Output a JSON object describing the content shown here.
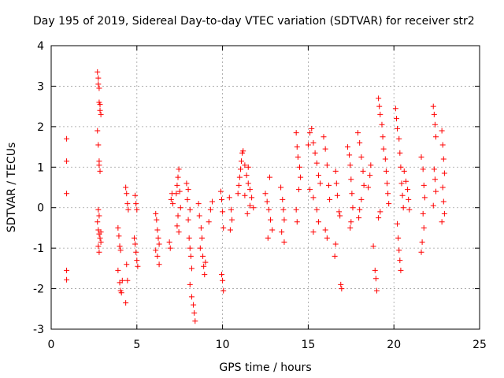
{
  "chart_data": {
    "type": "scatter",
    "title": "Day 195 of 2019, Sidereal Day-to-day VTEC variation (SDTVAR) for receiver str2",
    "xlabel": "GPS time / hours",
    "ylabel": "SDTVAR / TECUs",
    "xlim": [
      0,
      25
    ],
    "ylim": [
      -3,
      4
    ],
    "xticks": [
      "0",
      "5",
      "10",
      "15",
      "20",
      "25"
    ],
    "yticks": [
      "-3",
      "-2",
      "-1",
      "0",
      "1",
      "2",
      "3",
      "4"
    ],
    "grid": true,
    "marker": "+",
    "marker_color": "#ff0000",
    "series": [
      {
        "name": "SDTVAR",
        "points": [
          [
            0.9,
            1.7
          ],
          [
            0.9,
            1.15
          ],
          [
            0.9,
            0.35
          ],
          [
            0.9,
            -1.55
          ],
          [
            0.9,
            -1.78
          ],
          [
            2.7,
            3.35
          ],
          [
            2.75,
            3.2
          ],
          [
            2.75,
            3.05
          ],
          [
            2.8,
            2.95
          ],
          [
            2.8,
            2.6
          ],
          [
            2.85,
            2.55
          ],
          [
            2.85,
            2.4
          ],
          [
            2.9,
            2.3
          ],
          [
            2.7,
            1.9
          ],
          [
            2.75,
            1.55
          ],
          [
            2.8,
            1.15
          ],
          [
            2.8,
            1.05
          ],
          [
            2.85,
            0.9
          ],
          [
            2.75,
            -0.05
          ],
          [
            2.8,
            -0.2
          ],
          [
            2.7,
            -0.35
          ],
          [
            2.75,
            -0.55
          ],
          [
            2.8,
            -0.65
          ],
          [
            2.85,
            -0.75
          ],
          [
            2.9,
            -0.85
          ],
          [
            2.75,
            -0.95
          ],
          [
            2.8,
            -1.1
          ],
          [
            2.9,
            -0.6
          ],
          [
            3.9,
            -0.5
          ],
          [
            3.95,
            -0.7
          ],
          [
            4.0,
            -0.95
          ],
          [
            4.05,
            -1.05
          ],
          [
            3.9,
            -1.55
          ],
          [
            4.0,
            -1.85
          ],
          [
            4.05,
            -2.05
          ],
          [
            4.1,
            -2.1
          ],
          [
            4.15,
            -1.8
          ],
          [
            4.35,
            0.5
          ],
          [
            4.4,
            0.35
          ],
          [
            4.45,
            0.1
          ],
          [
            4.5,
            -0.05
          ],
          [
            4.4,
            -1.4
          ],
          [
            4.45,
            -1.8
          ],
          [
            4.35,
            -2.35
          ],
          [
            4.9,
            0.3
          ],
          [
            4.95,
            0.1
          ],
          [
            5.0,
            -0.05
          ],
          [
            4.85,
            -0.75
          ],
          [
            4.9,
            -0.9
          ],
          [
            4.95,
            -1.1
          ],
          [
            5.0,
            -1.3
          ],
          [
            5.05,
            -1.45
          ],
          [
            6.1,
            -0.15
          ],
          [
            6.15,
            -0.3
          ],
          [
            6.2,
            -0.55
          ],
          [
            6.25,
            -0.75
          ],
          [
            6.3,
            -0.9
          ],
          [
            6.1,
            -1.05
          ],
          [
            6.2,
            -1.2
          ],
          [
            6.3,
            -1.4
          ],
          [
            7.0,
            0.2
          ],
          [
            7.05,
            0.35
          ],
          [
            7.1,
            0.1
          ],
          [
            6.9,
            -0.85
          ],
          [
            6.95,
            -1.0
          ],
          [
            7.3,
            0.35
          ],
          [
            7.35,
            0.55
          ],
          [
            7.4,
            0.75
          ],
          [
            7.45,
            0.95
          ],
          [
            7.5,
            0.4
          ],
          [
            7.55,
            0.0
          ],
          [
            7.4,
            -0.2
          ],
          [
            7.35,
            -0.45
          ],
          [
            7.45,
            -0.6
          ],
          [
            7.9,
            0.6
          ],
          [
            8.0,
            0.45
          ],
          [
            7.95,
            0.2
          ],
          [
            8.1,
            -0.05
          ],
          [
            8.0,
            -0.3
          ],
          [
            8.05,
            -0.75
          ],
          [
            8.1,
            -1.0
          ],
          [
            8.15,
            -1.2
          ],
          [
            8.2,
            -1.5
          ],
          [
            8.1,
            -1.9
          ],
          [
            8.2,
            -2.2
          ],
          [
            8.3,
            -2.4
          ],
          [
            8.35,
            -2.6
          ],
          [
            8.4,
            -2.8
          ],
          [
            8.6,
            0.1
          ],
          [
            8.65,
            -0.2
          ],
          [
            8.75,
            -0.5
          ],
          [
            8.8,
            -0.75
          ],
          [
            8.7,
            -1.0
          ],
          [
            8.85,
            -1.2
          ],
          [
            8.9,
            -1.45
          ],
          [
            8.95,
            -1.65
          ],
          [
            9.0,
            -1.35
          ],
          [
            9.4,
            0.15
          ],
          [
            9.3,
            -0.05
          ],
          [
            9.2,
            -0.35
          ],
          [
            9.9,
            0.4
          ],
          [
            9.95,
            0.2
          ],
          [
            10.0,
            -0.1
          ],
          [
            10.05,
            -0.5
          ],
          [
            9.95,
            -1.65
          ],
          [
            10.0,
            -1.8
          ],
          [
            10.05,
            -2.05
          ],
          [
            10.4,
            0.25
          ],
          [
            10.5,
            -0.05
          ],
          [
            10.55,
            -0.3
          ],
          [
            10.45,
            -0.55
          ],
          [
            10.9,
            0.35
          ],
          [
            10.95,
            0.55
          ],
          [
            11.0,
            0.75
          ],
          [
            11.05,
            0.95
          ],
          [
            11.1,
            1.15
          ],
          [
            11.15,
            1.35
          ],
          [
            11.2,
            1.4
          ],
          [
            11.3,
            1.05
          ],
          [
            11.4,
            0.8
          ],
          [
            11.5,
            0.6
          ],
          [
            11.6,
            0.45
          ],
          [
            11.7,
            0.25
          ],
          [
            11.8,
            0.0
          ],
          [
            11.6,
            0.05
          ],
          [
            11.45,
            -0.15
          ],
          [
            11.3,
            0.3
          ],
          [
            11.5,
            1.0
          ],
          [
            12.5,
            0.35
          ],
          [
            12.6,
            0.15
          ],
          [
            12.7,
            -0.05
          ],
          [
            12.8,
            -0.3
          ],
          [
            12.9,
            -0.55
          ],
          [
            12.65,
            -0.75
          ],
          [
            12.75,
            0.75
          ],
          [
            13.4,
            0.5
          ],
          [
            13.5,
            0.2
          ],
          [
            13.55,
            -0.05
          ],
          [
            13.6,
            -0.3
          ],
          [
            13.45,
            -0.6
          ],
          [
            13.6,
            -0.85
          ],
          [
            14.3,
            1.85
          ],
          [
            14.35,
            1.5
          ],
          [
            14.4,
            1.25
          ],
          [
            14.5,
            1.0
          ],
          [
            14.55,
            0.75
          ],
          [
            14.45,
            0.45
          ],
          [
            14.3,
            -0.05
          ],
          [
            14.35,
            -0.35
          ],
          [
            15.0,
            1.55
          ],
          [
            15.1,
            1.85
          ],
          [
            15.2,
            1.95
          ],
          [
            15.3,
            1.6
          ],
          [
            15.4,
            1.35
          ],
          [
            15.5,
            1.1
          ],
          [
            15.6,
            0.8
          ],
          [
            15.7,
            0.6
          ],
          [
            15.1,
            0.45
          ],
          [
            15.3,
            0.25
          ],
          [
            15.5,
            -0.05
          ],
          [
            15.6,
            -0.35
          ],
          [
            15.3,
            -0.6
          ],
          [
            15.9,
            1.75
          ],
          [
            16.0,
            1.45
          ],
          [
            16.1,
            1.05
          ],
          [
            16.2,
            0.55
          ],
          [
            16.25,
            0.2
          ],
          [
            16.0,
            -0.55
          ],
          [
            16.1,
            -0.75
          ],
          [
            16.6,
            0.9
          ],
          [
            16.65,
            0.6
          ],
          [
            16.7,
            0.3
          ],
          [
            16.8,
            -0.1
          ],
          [
            16.85,
            -0.2
          ],
          [
            16.9,
            -1.9
          ],
          [
            16.95,
            -2.0
          ],
          [
            16.6,
            -0.9
          ],
          [
            16.55,
            -1.2
          ],
          [
            17.3,
            1.5
          ],
          [
            17.4,
            1.3
          ],
          [
            17.45,
            1.05
          ],
          [
            17.5,
            0.7
          ],
          [
            17.55,
            0.35
          ],
          [
            17.6,
            0.0
          ],
          [
            17.5,
            -0.35
          ],
          [
            17.45,
            -0.5
          ],
          [
            17.9,
            1.85
          ],
          [
            18.0,
            1.6
          ],
          [
            18.1,
            1.25
          ],
          [
            18.2,
            0.9
          ],
          [
            18.25,
            0.55
          ],
          [
            18.1,
            0.2
          ],
          [
            18.0,
            -0.05
          ],
          [
            17.95,
            -0.25
          ],
          [
            18.6,
            0.8
          ],
          [
            18.5,
            0.5
          ],
          [
            18.65,
            1.05
          ],
          [
            18.8,
            -0.95
          ],
          [
            18.9,
            -1.55
          ],
          [
            18.95,
            -1.75
          ],
          [
            19.0,
            -2.05
          ],
          [
            19.1,
            2.7
          ],
          [
            19.15,
            2.5
          ],
          [
            19.2,
            2.3
          ],
          [
            19.3,
            2.05
          ],
          [
            19.35,
            1.75
          ],
          [
            19.4,
            1.45
          ],
          [
            19.5,
            1.2
          ],
          [
            19.55,
            0.9
          ],
          [
            19.6,
            0.6
          ],
          [
            19.65,
            0.35
          ],
          [
            19.7,
            0.1
          ],
          [
            19.2,
            -0.1
          ],
          [
            19.1,
            -0.25
          ],
          [
            20.1,
            2.45
          ],
          [
            20.15,
            2.2
          ],
          [
            20.2,
            1.95
          ],
          [
            20.3,
            1.7
          ],
          [
            20.35,
            1.35
          ],
          [
            20.4,
            1.0
          ],
          [
            20.45,
            0.6
          ],
          [
            20.5,
            0.3
          ],
          [
            20.55,
            0.0
          ],
          [
            20.2,
            -0.4
          ],
          [
            20.25,
            -0.75
          ],
          [
            20.3,
            -1.05
          ],
          [
            20.35,
            -1.3
          ],
          [
            20.4,
            -1.55
          ],
          [
            20.6,
            0.9
          ],
          [
            20.7,
            0.65
          ],
          [
            20.8,
            0.45
          ],
          [
            20.85,
            0.2
          ],
          [
            20.9,
            -0.05
          ],
          [
            21.6,
            1.25
          ],
          [
            21.7,
            0.95
          ],
          [
            21.75,
            0.55
          ],
          [
            21.8,
            0.25
          ],
          [
            21.7,
            -0.15
          ],
          [
            21.75,
            -0.5
          ],
          [
            21.65,
            -0.85
          ],
          [
            21.6,
            -1.1
          ],
          [
            22.3,
            2.5
          ],
          [
            22.35,
            2.3
          ],
          [
            22.4,
            2.05
          ],
          [
            22.45,
            1.75
          ],
          [
            22.35,
            0.95
          ],
          [
            22.4,
            0.7
          ],
          [
            22.45,
            0.4
          ],
          [
            22.3,
            0.05
          ],
          [
            22.8,
            1.9
          ],
          [
            22.85,
            1.55
          ],
          [
            22.9,
            1.2
          ],
          [
            22.95,
            0.85
          ],
          [
            22.85,
            0.5
          ],
          [
            22.9,
            0.15
          ],
          [
            22.95,
            -0.15
          ],
          [
            22.8,
            -0.35
          ]
        ]
      }
    ]
  }
}
